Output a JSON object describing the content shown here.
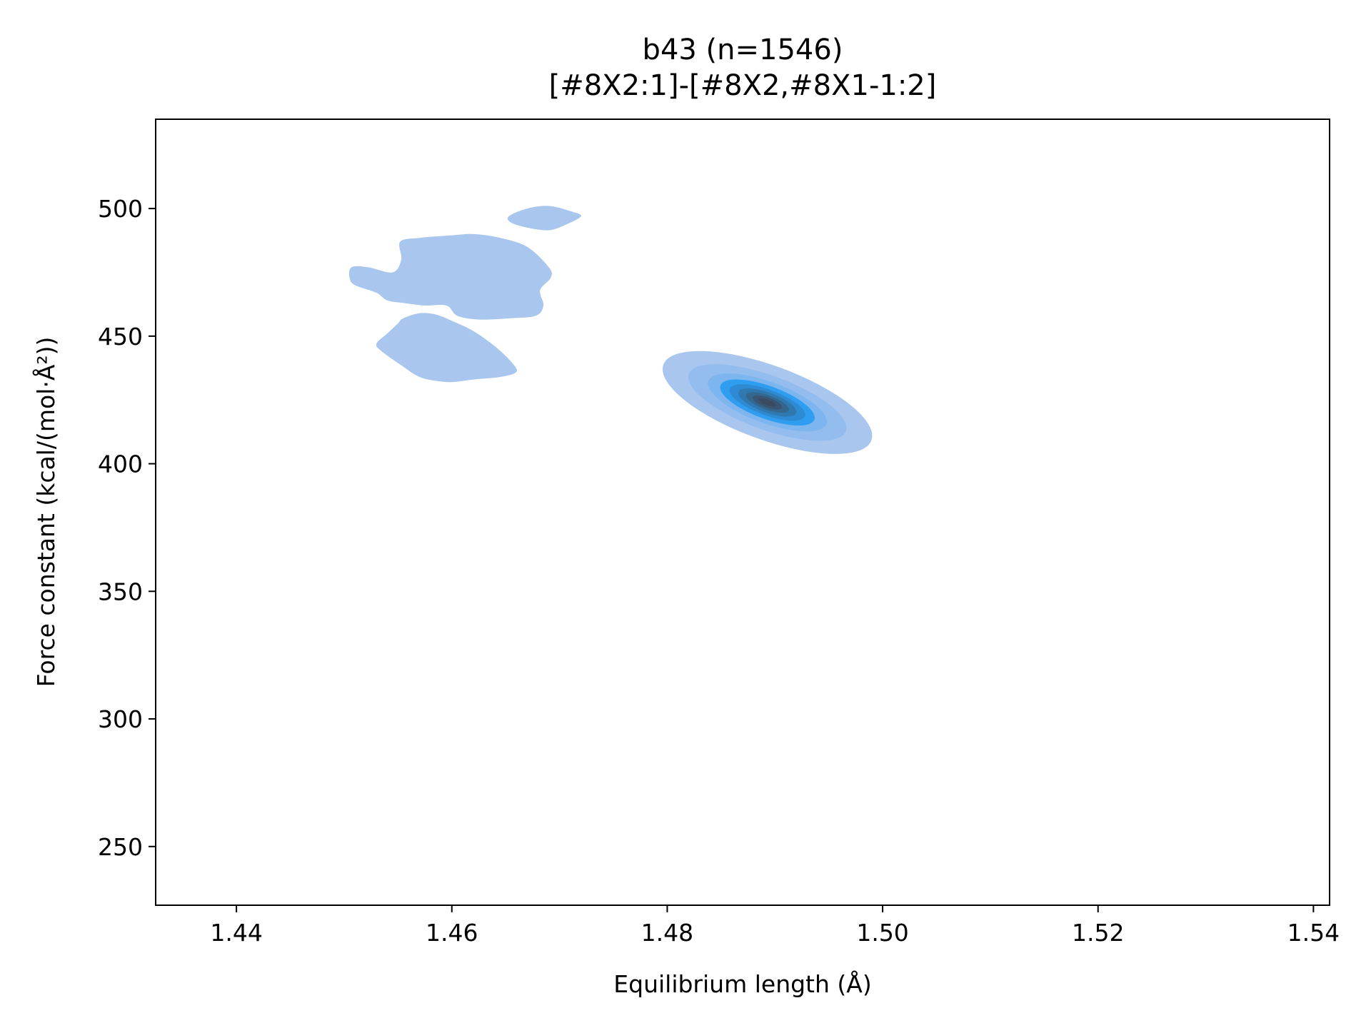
{
  "chart_data": {
    "type": "kde-contour",
    "title": "b43 (n=1546)",
    "subtitle": "[#8X2:1]-[#8X2,#8X1-1:2]",
    "xlabel": "Equilibrium length (Å)",
    "ylabel": "Force constant (kcal/(mol·Å²))",
    "xlim": [
      1.4325,
      1.5415
    ],
    "ylim": [
      227,
      535
    ],
    "xticks": [
      1.44,
      1.46,
      1.48,
      1.5,
      1.52,
      1.54
    ],
    "xtick_labels": [
      "1.44",
      "1.46",
      "1.48",
      "1.50",
      "1.52",
      "1.54"
    ],
    "yticks": [
      250,
      300,
      350,
      400,
      450,
      500
    ],
    "ytick_labels": [
      "250",
      "300",
      "350",
      "400",
      "450",
      "500"
    ],
    "grid": false,
    "colors": {
      "outer_level": "#a8c6ee",
      "mid_level": "#2f9ef0",
      "peak": "#3b4a5e"
    },
    "outer_regions": [
      {
        "name": "main-cluster",
        "points": [
          [
            1.4507,
            477
          ],
          [
            1.4522,
            477
          ],
          [
            1.4545,
            475
          ],
          [
            1.4553,
            480
          ],
          [
            1.4552,
            487
          ],
          [
            1.457,
            488.5
          ],
          [
            1.46,
            489.5
          ],
          [
            1.462,
            490
          ],
          [
            1.4645,
            488.5
          ],
          [
            1.467,
            485
          ],
          [
            1.469,
            477
          ],
          [
            1.4692,
            473
          ],
          [
            1.4682,
            468
          ],
          [
            1.4685,
            462
          ],
          [
            1.4678,
            458
          ],
          [
            1.4655,
            457
          ],
          [
            1.4625,
            456.5
          ],
          [
            1.4605,
            458
          ],
          [
            1.4595,
            462
          ],
          [
            1.4575,
            462
          ],
          [
            1.4555,
            463
          ],
          [
            1.454,
            464
          ],
          [
            1.453,
            467
          ],
          [
            1.451,
            470
          ],
          [
            1.4505,
            473
          ]
        ]
      },
      {
        "name": "lower-lobe",
        "points": [
          [
            1.4555,
            457
          ],
          [
            1.457,
            459
          ],
          [
            1.4585,
            458.5
          ],
          [
            1.46,
            456
          ],
          [
            1.462,
            452
          ],
          [
            1.464,
            446
          ],
          [
            1.4655,
            440
          ],
          [
            1.466,
            436
          ],
          [
            1.4645,
            434
          ],
          [
            1.462,
            433
          ],
          [
            1.46,
            432
          ],
          [
            1.4585,
            432.5
          ],
          [
            1.457,
            434
          ],
          [
            1.4555,
            438
          ],
          [
            1.4535,
            444
          ],
          [
            1.453,
            447
          ],
          [
            1.454,
            451
          ],
          [
            1.455,
            455
          ]
        ]
      },
      {
        "name": "upper-blob",
        "points": [
          [
            1.4653,
            497
          ],
          [
            1.467,
            500
          ],
          [
            1.469,
            501
          ],
          [
            1.471,
            499
          ],
          [
            1.472,
            497
          ],
          [
            1.4705,
            493.5
          ],
          [
            1.469,
            491.5
          ],
          [
            1.467,
            492.5
          ],
          [
            1.4655,
            494.5
          ]
        ]
      }
    ],
    "peak_ellipses": {
      "center": [
        1.4893,
        424
      ],
      "angle_deg": 20,
      "levels": [
        {
          "rx_px": 155,
          "ry_px": 52,
          "color": "#a8c6ee"
        },
        {
          "rx_px": 117,
          "ry_px": 38,
          "color": "#93bdee"
        },
        {
          "rx_px": 88,
          "ry_px": 29,
          "color": "#7db6ef"
        },
        {
          "rx_px": 70,
          "ry_px": 23,
          "color": "#2f9ef0"
        },
        {
          "rx_px": 56,
          "ry_px": 18,
          "color": "#2e8bd3"
        },
        {
          "rx_px": 43,
          "ry_px": 14,
          "color": "#3079b0"
        },
        {
          "rx_px": 32,
          "ry_px": 10,
          "color": "#34678d"
        },
        {
          "rx_px": 22,
          "ry_px": 7,
          "color": "#385673"
        },
        {
          "rx_px": 13,
          "ry_px": 4,
          "color": "#3b4a5e"
        }
      ]
    }
  }
}
